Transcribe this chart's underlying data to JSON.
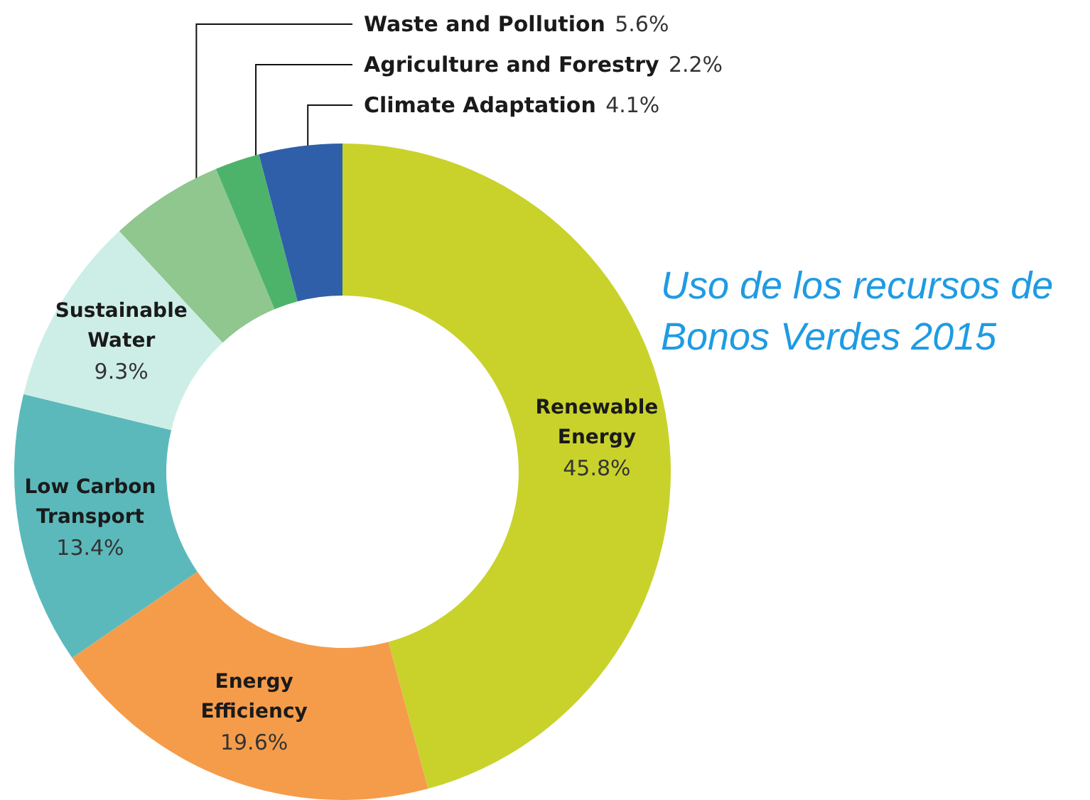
{
  "chart_data": {
    "type": "donut",
    "title": "Uso de los recursos de Bonos Verdes 2015",
    "categories": [
      "Renewable Energy",
      "Energy Efficiency",
      "Low Carbon Transport",
      "Sustainable Water",
      "Waste and Pollution",
      "Agriculture and Forestry",
      "Climate Adaptation"
    ],
    "values": [
      45.8,
      19.6,
      13.4,
      9.3,
      5.6,
      2.2,
      4.1
    ],
    "value_labels": [
      "45.8%",
      "19.6%",
      "13.4%",
      "9.3%",
      "5.6%",
      "2.2%",
      "4.1%"
    ],
    "colors": [
      "#c9d22a",
      "#f59c4a",
      "#5bb9bb",
      "#cdeee6",
      "#8fc78f",
      "#4db36b",
      "#2f5fa8"
    ],
    "legend": false
  }
}
